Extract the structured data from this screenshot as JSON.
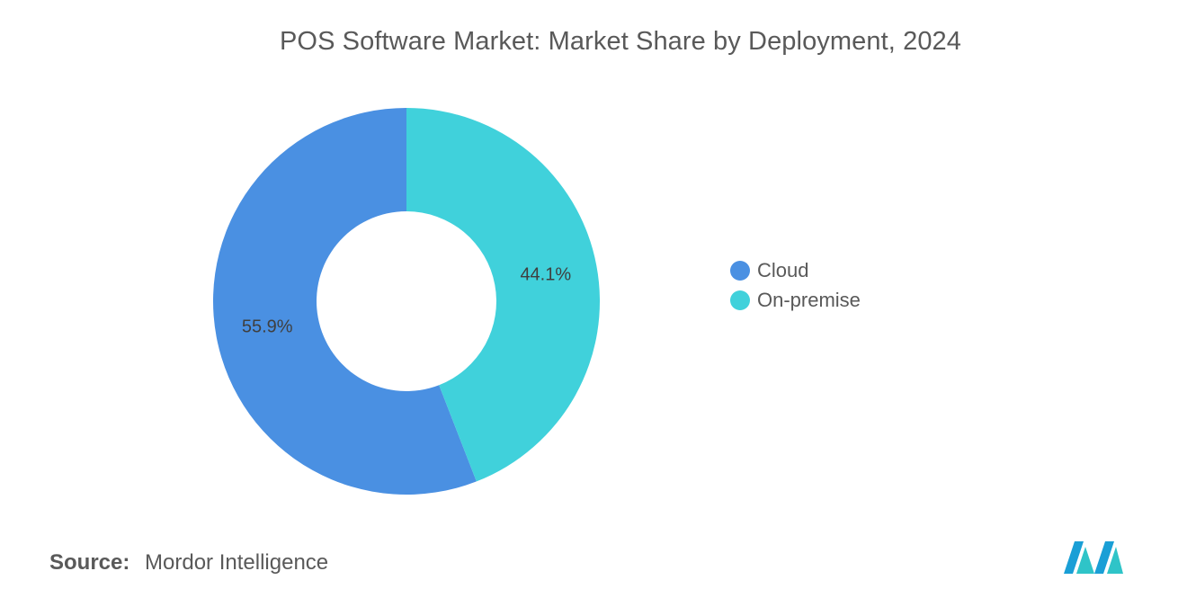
{
  "title": "POS Software Market: Market Share by Deployment, 2024",
  "chart_data": {
    "type": "pie",
    "variant": "donut",
    "title": "POS Software Market: Market Share by Deployment, 2024",
    "categories": [
      "Cloud",
      "On-premise"
    ],
    "values": [
      55.9,
      44.1
    ],
    "value_labels": [
      "55.9%",
      "44.1%"
    ],
    "colors": [
      "#4a90e2",
      "#40d1db"
    ],
    "legend_position": "right"
  },
  "legend": [
    {
      "label": "Cloud",
      "color": "#4a90e2"
    },
    {
      "label": "On-premise",
      "color": "#40d1db"
    }
  ],
  "source": {
    "label": "Source:",
    "value": "Mordor Intelligence"
  },
  "logo": {
    "icon": "mordor-intelligence-logo",
    "colors": [
      "#1a9fd6",
      "#2fc4c8"
    ]
  }
}
